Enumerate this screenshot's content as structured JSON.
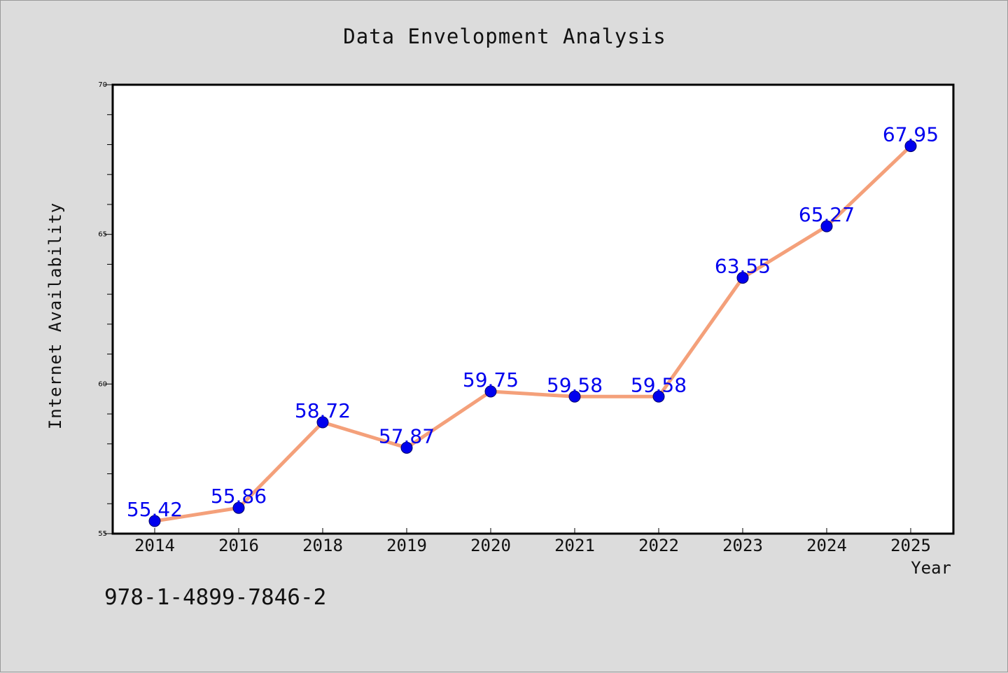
{
  "figure": {
    "background": "#dcdcdc",
    "isbn_text": "978-1-4899-7846-2"
  },
  "chart_data": {
    "type": "line",
    "title": "Data Envelopment Analysis",
    "xlabel": "Year",
    "ylabel": "Internet Availability",
    "categories": [
      "2014",
      "2016",
      "2018",
      "2019",
      "2020",
      "2021",
      "2022",
      "2023",
      "2024",
      "2025"
    ],
    "series": [
      {
        "values": [
          55.42,
          55.86,
          58.72,
          57.87,
          59.75,
          59.58,
          59.58,
          63.55,
          65.27,
          67.95
        ],
        "line_color": "#f4a07a",
        "marker_color": "#0000ee",
        "label_color": "#0000ee"
      }
    ],
    "data_labels": [
      "55.42",
      "55.86",
      "58.72",
      "57.87",
      "59.75",
      "59.58",
      "59.58",
      "63.55",
      "65.27",
      "67.95"
    ],
    "ylim": [
      55,
      70
    ],
    "y_major_ticks": [
      "55",
      "60",
      "65",
      "70"
    ],
    "y_minor_step": 1,
    "grid": false,
    "legend": "none"
  }
}
